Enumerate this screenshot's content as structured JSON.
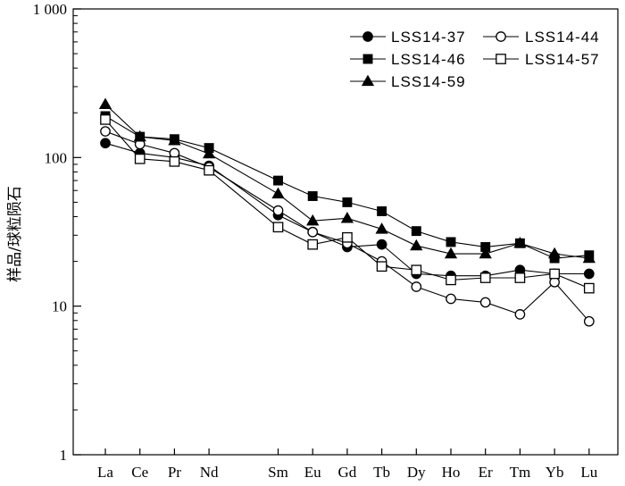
{
  "chart_data": {
    "type": "line",
    "title": "",
    "xlabel": "",
    "ylabel": "样品/球粒陨石",
    "yscale": "log",
    "ylim": [
      1,
      1000
    ],
    "yticks": [
      {
        "value": 1,
        "label": "1"
      },
      {
        "value": 10,
        "label": "10"
      },
      {
        "value": 100,
        "label": "100"
      },
      {
        "value": 1000,
        "label": "1 000"
      }
    ],
    "categories": [
      "La",
      "Ce",
      "Pr",
      "Nd",
      "Sm",
      "Eu",
      "Gd",
      "Tb",
      "Dy",
      "Ho",
      "Er",
      "Tm",
      "Yb",
      "Lu"
    ],
    "category_index": [
      0,
      1,
      2,
      3,
      5,
      6,
      7,
      8,
      9,
      10,
      11,
      12,
      13,
      14
    ],
    "grid": false,
    "legend_position": "top-right",
    "series": [
      {
        "name": "LSS14-37",
        "marker": "filled-circle",
        "values": [
          125,
          107,
          100,
          88,
          41,
          31.5,
          25,
          26,
          16.5,
          16,
          16,
          17.5,
          16.5,
          16.5
        ]
      },
      {
        "name": "LSS14-44",
        "marker": "open-circle",
        "values": [
          150,
          123,
          107,
          86,
          44,
          31.5,
          26.5,
          20,
          13.5,
          11.2,
          10.6,
          8.8,
          14.5,
          7.9
        ]
      },
      {
        "name": "LSS14-46",
        "marker": "filled-square",
        "values": [
          190,
          138,
          133,
          116,
          70,
          55,
          50,
          43.5,
          32,
          27,
          25,
          26.5,
          21,
          22
        ]
      },
      {
        "name": "LSS14-57",
        "marker": "open-square",
        "values": [
          180,
          98,
          94,
          82,
          34,
          26,
          29,
          18.5,
          17.5,
          15,
          15.5,
          15.5,
          16.5,
          13.2
        ]
      },
      {
        "name": "LSS14-59",
        "marker": "filled-triangle",
        "values": [
          228,
          138,
          130,
          106,
          57,
          37.5,
          39,
          33,
          25.5,
          22.5,
          22.5,
          26.5,
          22.5,
          21
        ]
      }
    ]
  }
}
